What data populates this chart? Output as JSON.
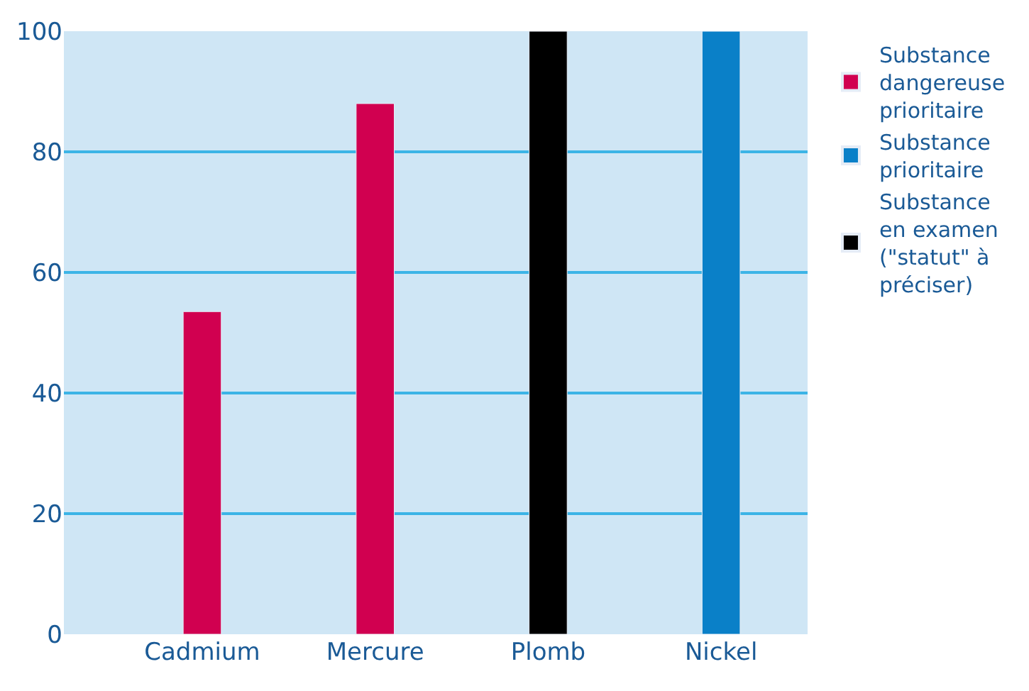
{
  "chart_data": {
    "type": "bar",
    "categories": [
      "Cadmium",
      "Mercure",
      "Plomb",
      "Nickel"
    ],
    "series": [
      {
        "name": "Substance dangereuse prioritaire",
        "color": "#d10050",
        "values": [
          53.5,
          88,
          null,
          null
        ]
      },
      {
        "name": "Substance prioritaire",
        "color": "#0a80c8",
        "values": [
          null,
          null,
          null,
          100
        ]
      },
      {
        "name": "Substance en examen (\"statut\" à préciser)",
        "color": "#000000",
        "values": [
          null,
          null,
          100,
          null
        ]
      }
    ],
    "ylim": [
      0,
      100
    ],
    "yticks": [
      0,
      20,
      40,
      60,
      80,
      100
    ],
    "grid": "y",
    "legend": "right"
  }
}
